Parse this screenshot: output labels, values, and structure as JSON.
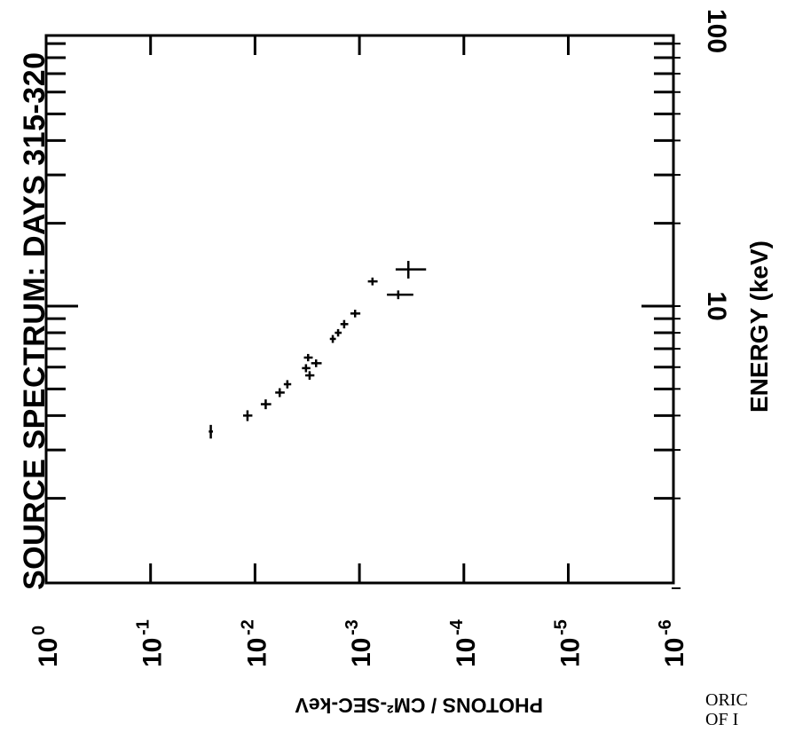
{
  "chart_data": {
    "type": "scatter",
    "title": "SOURCE SPECTRUM: DAYS 315-320",
    "xlabel": "PHOTONS / CM²-SEC-keV",
    "ylabel": "ENERGY (keV)",
    "x_scale": "log-reversed",
    "y_scale": "log",
    "xlim": [
      1,
      1e-06
    ],
    "ylim": [
      1.5,
      100
    ],
    "x_ticks": [
      {
        "base": "10",
        "exp": "0"
      },
      {
        "base": "10",
        "exp": "-1"
      },
      {
        "base": "10",
        "exp": "-2"
      },
      {
        "base": "10",
        "exp": "-3"
      },
      {
        "base": "10",
        "exp": "-4"
      },
      {
        "base": "10",
        "exp": "-5"
      },
      {
        "base": "10",
        "exp": "-6"
      }
    ],
    "y_ticks": [
      "10",
      "100"
    ],
    "points": [
      {
        "flux": 0.0265,
        "energy": 3.5,
        "flux_err": 0.0012,
        "energy_err": 0.2
      },
      {
        "flux": 0.0118,
        "energy": 4.0,
        "flux_err": 0.0012,
        "energy_err": 0.18
      },
      {
        "flux": 0.0079,
        "energy": 4.4,
        "flux_err": 0.0009,
        "energy_err": 0.18
      },
      {
        "flux": 0.0058,
        "energy": 4.85,
        "flux_err": 0.0006,
        "energy_err": 0.18
      },
      {
        "flux": 0.0049,
        "energy": 5.2,
        "flux_err": 0.0004,
        "energy_err": 0.18
      },
      {
        "flux": 0.00325,
        "energy": 5.95,
        "flux_err": 0.0003,
        "energy_err": 0.2
      },
      {
        "flux": 0.003,
        "energy": 5.6,
        "flux_err": 0.0003,
        "energy_err": 0.2
      },
      {
        "flux": 0.0031,
        "energy": 6.5,
        "flux_err": 0.0003,
        "energy_err": 0.2
      },
      {
        "flux": 0.0026,
        "energy": 6.2,
        "flux_err": 0.0003,
        "energy_err": 0.2
      },
      {
        "flux": 0.0018,
        "energy": 7.6,
        "flux_err": 0.00012,
        "energy_err": 0.25
      },
      {
        "flux": 0.0016,
        "energy": 8.0,
        "flux_err": 0.00012,
        "energy_err": 0.25
      },
      {
        "flux": 0.0014,
        "energy": 8.6,
        "flux_err": 0.00012,
        "energy_err": 0.3
      },
      {
        "flux": 0.0011,
        "energy": 9.4,
        "flux_err": 0.00012,
        "energy_err": 0.3
      },
      {
        "flux": 0.00075,
        "energy": 12.3,
        "flux_err": 8e-05,
        "energy_err": 0.4
      },
      {
        "flux": 0.000425,
        "energy": 11.0,
        "flux_err": 0.00012,
        "energy_err": 0.4
      },
      {
        "flux": 0.00034,
        "energy": 13.6,
        "flux_err": 0.00011,
        "energy_err": 1.0
      }
    ]
  },
  "footnote": "ORIC\nOF I"
}
